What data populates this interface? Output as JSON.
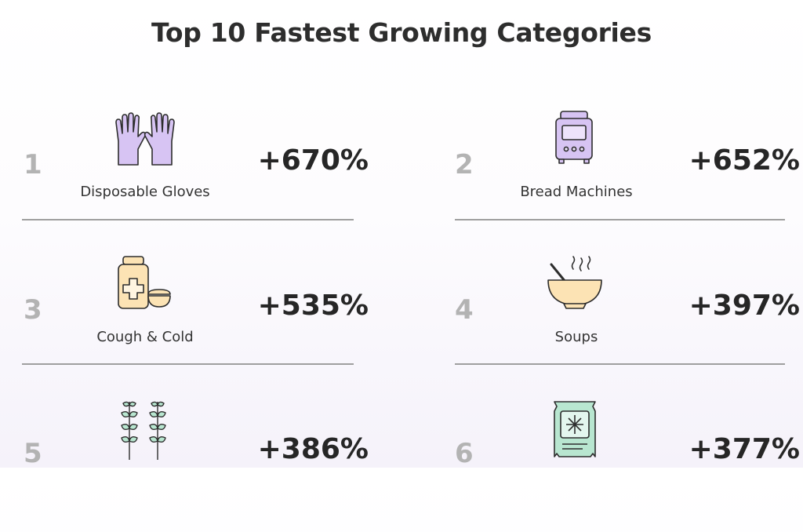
{
  "title": "Top 10 Fastest Growing Categories",
  "items": [
    {
      "rank": "1",
      "label": "Disposable Gloves",
      "growth": "+670%",
      "icon": "gloves-icon"
    },
    {
      "rank": "2",
      "label": "Bread Machines",
      "growth": "+652%",
      "icon": "bread-machine-icon"
    },
    {
      "rank": "3",
      "label": "Cough & Cold",
      "growth": "+535%",
      "icon": "medicine-icon"
    },
    {
      "rank": "4",
      "label": "Soups",
      "growth": "+397%",
      "icon": "soup-bowl-icon"
    },
    {
      "rank": "5",
      "label": "",
      "growth": "+386%",
      "icon": "wheat-icon"
    },
    {
      "rank": "6",
      "label": "",
      "growth": "+377%",
      "icon": "frozen-bag-icon"
    }
  ],
  "colors": {
    "lavender": "#d7c4f3",
    "peach": "#fce3b4",
    "mint": "#b8e6d0",
    "outline": "#2d2d2d",
    "rank": "#b3b3b3",
    "divider": "#9f9f9f"
  }
}
